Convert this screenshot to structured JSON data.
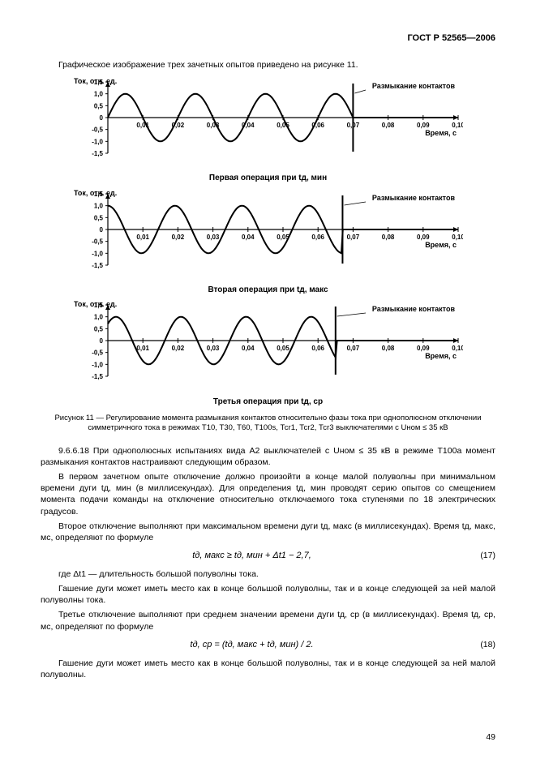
{
  "header": {
    "standard": "ГОСТ Р 52565—2006"
  },
  "intro": "Графическое изображение трех зачетных опытов приведено на рисунке 11.",
  "charts": {
    "ylabel": "Ток, отн. ед.",
    "xlabel": "Время, с",
    "annotation": "Размыкание контактов",
    "yticks": [
      "1,5",
      "1,0",
      "0,5",
      "0",
      "-0,5",
      "-1,0",
      "-1,5"
    ],
    "xticks": [
      "0,01",
      "0,02",
      "0,03",
      "0,04",
      "0,05",
      "0,06",
      "0,07",
      "0,08",
      "0,09",
      "0,10"
    ],
    "marker_line_color": "#000000",
    "wave_color": "#000000",
    "axis_color": "#000000",
    "tick_fontsize": 8,
    "label_fontsize": 9,
    "items": [
      {
        "caption": "Первая операция при tд, мин",
        "marker_x": 0.07,
        "cycles": 3.5,
        "phase": 0.0
      },
      {
        "caption": "Вторая операция при tд, макс",
        "marker_x": 0.067,
        "cycles": 3.5,
        "phase": 0.5
      },
      {
        "caption": "Третья операция при tд, ср",
        "marker_x": 0.065,
        "cycles": 3.5,
        "phase": 0.25
      }
    ]
  },
  "figure_caption": "Рисунок 11 — Регулирование момента размыкания контактов относительно фазы тока при однополюсном отключении симметричного тока в режимах Т10, Т30, Т60, Т100s, Тсr1, Тсr2, Тсr3  выключателями с Uном ≤ 35 кВ",
  "paragraphs": {
    "p1": "9.6.6.18 При однополюсных испытаниях вида А2  выключателей с Uном ≤ 35 кВ в режиме Т100а момент размыкания контактов настраивают следующим образом.",
    "p2": "В первом зачетном опыте отключение должно произойти в конце малой полуволны при минимальном времени дуги  tд, мин (в миллисекундах). Для определения tд, мин проводят серию опытов со смещением момента подачи команды на отключение относительно отключаемого тока ступенями по 18 электрических градусов.",
    "p3": "Второе отключение выполняют при максимальном времени дуги tд, макс (в миллисекундах). Время tд, макс, мс, определяют по формуле",
    "p4": "где  Δt1 — длительность большой полуволны тока.",
    "p5": "Гашение дуги может иметь место как в конце большой полуволны, так и в конце следующей за ней малой полуволны тока.",
    "p6": "Третье отключение выполняют при среднем значении времени  дуги tд, ср (в миллисекундах). Время tд, ср, мс, определяют по формуле",
    "p7": "Гашение дуги может иметь место как в конце большой полуволны, так и в конце следующей за ней малой полуволны."
  },
  "formulas": {
    "f17": {
      "text": "tд, макс ≥ tд, мин + Δt1 − 2,7,",
      "num": "(17)"
    },
    "f18": {
      "text": "tд, ср = (tд, макс + tд, мин) / 2.",
      "num": "(18)"
    }
  },
  "page_number": "49"
}
